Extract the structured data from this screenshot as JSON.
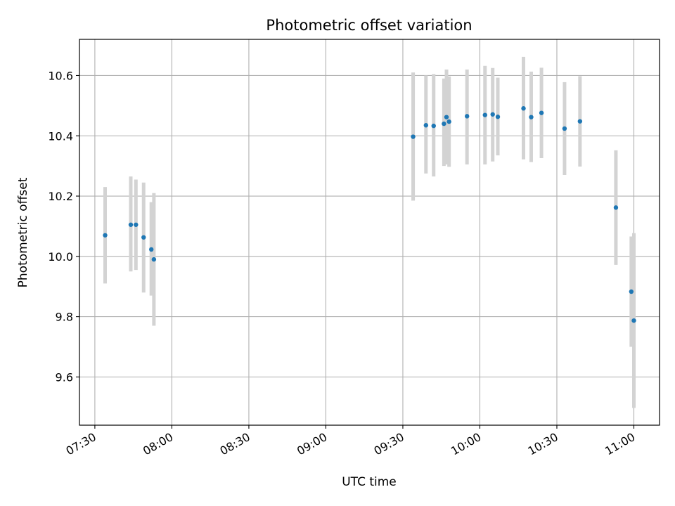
{
  "chart_data": {
    "type": "scatter",
    "title": "Photometric offset variation",
    "xlabel": "UTC time",
    "ylabel": "Photometric offset",
    "x_unit": "HH:MM UTC",
    "xlim": [
      "07:24",
      "11:10"
    ],
    "ylim": [
      9.44,
      10.72
    ],
    "grid": true,
    "x_ticks": [
      "07:30",
      "08:00",
      "08:30",
      "09:00",
      "09:30",
      "10:00",
      "10:30",
      "11:00"
    ],
    "y_ticks": [
      9.6,
      9.8,
      10.0,
      10.2,
      10.4,
      10.6
    ],
    "y_tick_labels": [
      "9.6",
      "9.8",
      "10.0",
      "10.2",
      "10.4",
      "10.6"
    ],
    "marker_color": "#1f77b4",
    "errorbar_color": "#d3d3d3",
    "points": [
      {
        "x": "07:34",
        "y": 10.07,
        "lo": 9.91,
        "hi": 10.23
      },
      {
        "x": "07:44",
        "y": 10.105,
        "lo": 9.95,
        "hi": 10.265
      },
      {
        "x": "07:46",
        "y": 10.105,
        "lo": 9.955,
        "hi": 10.255
      },
      {
        "x": "07:49",
        "y": 10.063,
        "lo": 9.88,
        "hi": 10.245
      },
      {
        "x": "07:52",
        "y": 10.023,
        "lo": 9.87,
        "hi": 10.18
      },
      {
        "x": "07:53",
        "y": 9.99,
        "lo": 9.77,
        "hi": 10.21
      },
      {
        "x": "09:34",
        "y": 10.397,
        "lo": 10.185,
        "hi": 10.61
      },
      {
        "x": "09:39",
        "y": 10.435,
        "lo": 10.275,
        "hi": 10.6
      },
      {
        "x": "09:42",
        "y": 10.433,
        "lo": 10.265,
        "hi": 10.605
      },
      {
        "x": "09:46",
        "y": 10.44,
        "lo": 10.3,
        "hi": 10.59
      },
      {
        "x": "09:47",
        "y": 10.462,
        "lo": 10.305,
        "hi": 10.62
      },
      {
        "x": "09:48",
        "y": 10.447,
        "lo": 10.297,
        "hi": 10.597
      },
      {
        "x": "09:55",
        "y": 10.465,
        "lo": 10.305,
        "hi": 10.62
      },
      {
        "x": "10:02",
        "y": 10.469,
        "lo": 10.305,
        "hi": 10.632
      },
      {
        "x": "10:05",
        "y": 10.471,
        "lo": 10.315,
        "hi": 10.625
      },
      {
        "x": "10:07",
        "y": 10.463,
        "lo": 10.335,
        "hi": 10.593
      },
      {
        "x": "10:17",
        "y": 10.491,
        "lo": 10.322,
        "hi": 10.662
      },
      {
        "x": "10:20",
        "y": 10.462,
        "lo": 10.313,
        "hi": 10.613
      },
      {
        "x": "10:24",
        "y": 10.476,
        "lo": 10.326,
        "hi": 10.626
      },
      {
        "x": "10:33",
        "y": 10.424,
        "lo": 10.27,
        "hi": 10.578
      },
      {
        "x": "10:39",
        "y": 10.448,
        "lo": 10.298,
        "hi": 10.598
      },
      {
        "x": "10:53",
        "y": 10.162,
        "lo": 9.972,
        "hi": 10.352
      },
      {
        "x": "10:59",
        "y": 9.883,
        "lo": 9.7,
        "hi": 10.066
      },
      {
        "x": "11:00",
        "y": 9.787,
        "lo": 9.497,
        "hi": 10.077
      }
    ]
  }
}
